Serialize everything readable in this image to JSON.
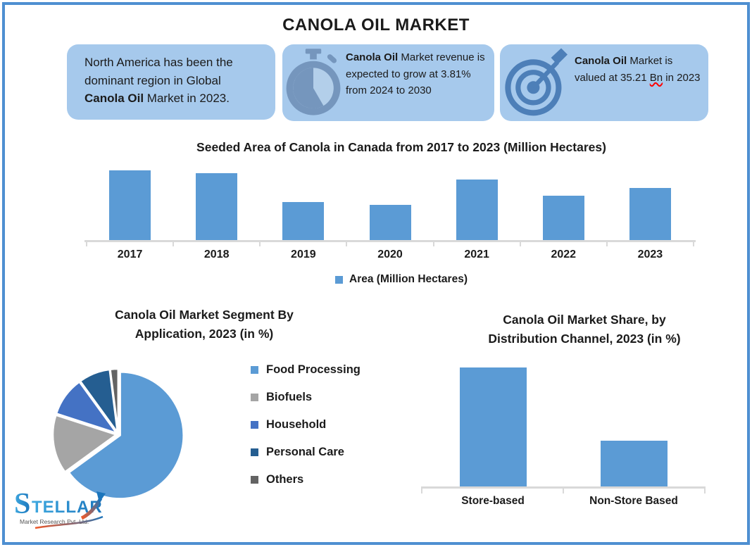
{
  "title": "CANOLA OIL MARKET",
  "info_boxes": [
    {
      "icon": "none",
      "segments": [
        {
          "t": "North America has been the dominant region in Global "
        },
        {
          "t": "Canola Oil",
          "b": 1
        },
        {
          "t": " Market in 2023."
        }
      ]
    },
    {
      "icon": "stopwatch",
      "segments": [
        {
          "t": "Canola Oil",
          "b": 1
        },
        {
          "t": " Market revenue is expected to grow at 3.81% from 2024 to 2030"
        }
      ]
    },
    {
      "icon": "target",
      "segments": [
        {
          "t": "Canola Oil",
          "b": 1
        },
        {
          "t": " Market is valued at 35.21 "
        },
        {
          "t": "Bn",
          "w": 1
        },
        {
          "t": " in 2023"
        }
      ]
    }
  ],
  "chart_data": [
    {
      "type": "bar",
      "title": "Seeded Area of Canola in Canada from 2017 to 2023 (Million Hectares)",
      "categories": [
        "2017",
        "2018",
        "2019",
        "2020",
        "2021",
        "2022",
        "2023"
      ],
      "values": [
        9.31,
        9.23,
        8.48,
        8.41,
        9.07,
        8.66,
        8.85
      ],
      "ylim": [
        7.5,
        9.4
      ],
      "ylabel": "",
      "xlabel": "",
      "grid": false,
      "legend_label": "Area (Million Hectares)",
      "legend_position": "bottom",
      "bar_color": "#5B9BD5",
      "unit": "Million Hectares"
    },
    {
      "type": "pie",
      "title": "Canola Oil Market Segment By Application, 2023 (in %)",
      "title_lines": [
        "Canola Oil Market Segment By",
        "Application, 2023 (in %)"
      ],
      "labels": [
        "Food Processing",
        "Biofuels",
        "Household",
        "Personal Care",
        "Others"
      ],
      "values": [
        65,
        15,
        10,
        8,
        2
      ],
      "colors": [
        "#5B9BD5",
        "#A5A5A5",
        "#4472C4",
        "#255E91",
        "#636363"
      ],
      "legend_position": "right",
      "exploded": true
    },
    {
      "type": "bar",
      "title": "Canola Oil Market Share, by Distribution Channel, 2023 (in %)",
      "title_lines": [
        "Canola Oil Market Share, by",
        "Distribution Channel, 2023 (in %)"
      ],
      "categories": [
        "Store-based",
        "Non-Store Based"
      ],
      "values": [
        72,
        28
      ],
      "ylim": [
        0,
        100
      ],
      "grid": false,
      "bar_color": "#5B9BD5"
    }
  ],
  "logo": {
    "name": "STELLAR",
    "subtitle": "Market Research Pvt. Ltd."
  },
  "colors": {
    "accent_blue": "#5B9BD5",
    "box_bg": "#A6C9EC",
    "border": "#4E8FD1",
    "axis": "#D9D9D9",
    "icon_blue": "#7596BD",
    "icon_face": "#B3CFEA",
    "target_blue": "#4D7FB8",
    "logo_blue": "#1B75BC",
    "logo_orange": "#F15A29",
    "text": "#1B1B1B",
    "spellcheck_red": "#FF0000"
  }
}
